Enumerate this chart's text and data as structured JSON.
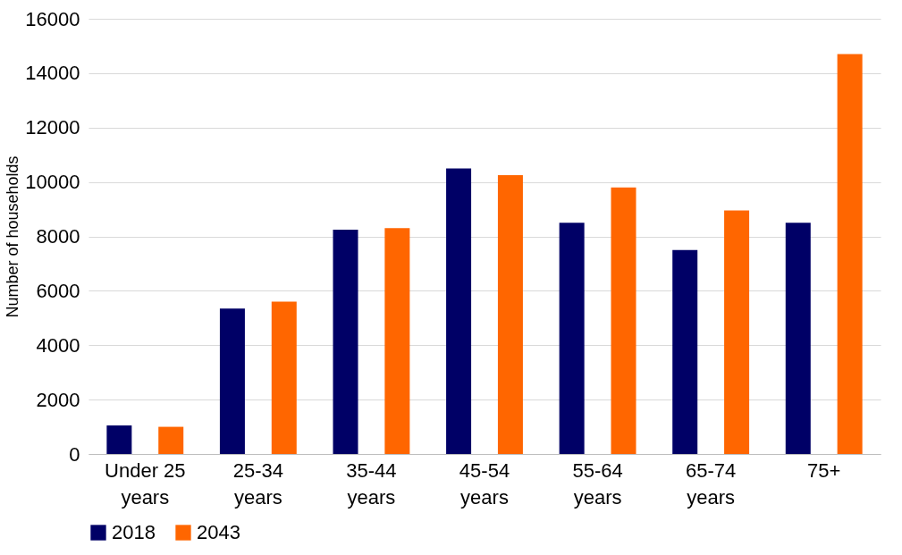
{
  "chart_data": {
    "type": "bar",
    "ylabel": "Number of households",
    "categories": [
      "Under 25 years",
      "25-34 years",
      "35-44 years",
      "45-54 years",
      "55-64 years",
      "65-74 years",
      "75+"
    ],
    "series": [
      {
        "name": "2018",
        "color": "#000066",
        "values": [
          1050,
          5350,
          8250,
          10500,
          8500,
          7500,
          8500
        ]
      },
      {
        "name": "2043",
        "color": "#ff6600",
        "values": [
          1000,
          5600,
          8300,
          10250,
          9800,
          8950,
          14700
        ]
      }
    ],
    "ylim": [
      0,
      16000
    ],
    "yticks": [
      0,
      2000,
      4000,
      6000,
      8000,
      10000,
      12000,
      14000,
      16000
    ],
    "grid": "y",
    "legend": "bottom"
  }
}
